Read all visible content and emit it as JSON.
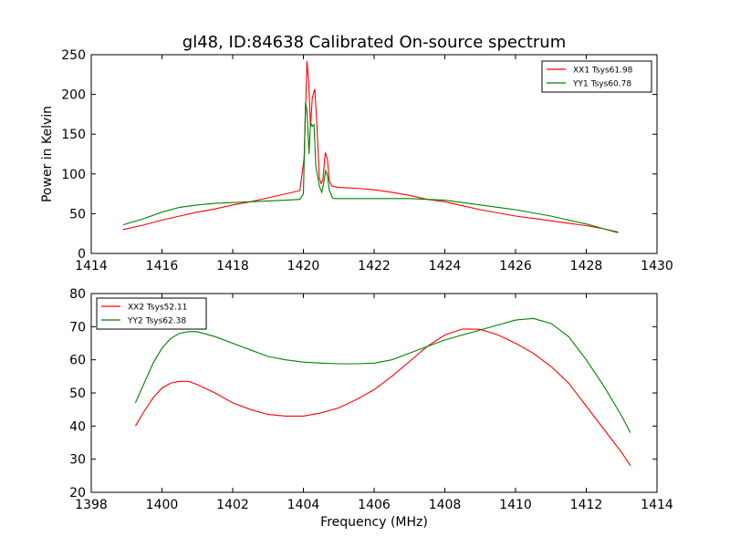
{
  "figure": {
    "title": "gl48, ID:84638 Calibrated On-source spectrum",
    "ylabel": "Power in Kelvin",
    "xlabel": "Frequency (MHz)"
  },
  "chart_data": [
    {
      "type": "line",
      "title": "gl48, ID:84638 Calibrated On-source spectrum",
      "ylabel": "Power in Kelvin",
      "xlabel": "",
      "xlim": [
        1414,
        1430
      ],
      "ylim": [
        0,
        250
      ],
      "xticks": [
        "1414",
        "1416",
        "1418",
        "1420",
        "1422",
        "1424",
        "1426",
        "1428",
        "1430"
      ],
      "yticks": [
        "0",
        "50",
        "100",
        "150",
        "200",
        "250"
      ],
      "grid": false,
      "legend_position": "top-right",
      "series": [
        {
          "name": "XX1 Tsys61.98",
          "color": "#ff0000",
          "x": [
            1414.9,
            1415.5,
            1416.0,
            1416.5,
            1417.0,
            1417.5,
            1418.0,
            1418.5,
            1419.0,
            1419.5,
            1419.9,
            1420.02,
            1420.1,
            1420.15,
            1420.2,
            1420.25,
            1420.32,
            1420.38,
            1420.45,
            1420.5,
            1420.55,
            1420.62,
            1420.68,
            1420.73,
            1420.8,
            1420.9,
            1421.0,
            1421.5,
            1422.0,
            1422.5,
            1423.0,
            1423.5,
            1424.0,
            1424.5,
            1425.0,
            1425.5,
            1426.0,
            1426.5,
            1427.0,
            1427.5,
            1428.0,
            1428.5,
            1428.9
          ],
          "y": [
            30,
            36,
            42,
            47,
            52,
            56,
            61,
            65,
            70,
            75,
            79,
            120,
            242,
            215,
            160,
            195,
            207,
            165,
            95,
            88,
            92,
            127,
            118,
            92,
            85,
            84,
            83,
            82,
            80,
            77,
            73,
            68,
            65,
            60,
            55,
            51,
            47,
            44,
            41,
            38,
            35,
            31,
            27
          ]
        },
        {
          "name": "YY1 Tsys60.78",
          "color": "#008000",
          "x": [
            1414.9,
            1415.5,
            1416.0,
            1416.5,
            1417.0,
            1417.5,
            1418.0,
            1418.5,
            1419.0,
            1419.5,
            1419.9,
            1420.0,
            1420.06,
            1420.1,
            1420.16,
            1420.2,
            1420.25,
            1420.3,
            1420.35,
            1420.45,
            1420.52,
            1420.58,
            1420.63,
            1420.68,
            1420.73,
            1420.82,
            1420.9,
            1421.0,
            1421.5,
            1422.0,
            1422.5,
            1423.0,
            1423.5,
            1424.0,
            1424.5,
            1425.0,
            1425.5,
            1426.0,
            1426.5,
            1427.0,
            1427.5,
            1428.0,
            1428.5,
            1428.9
          ],
          "y": [
            36,
            44,
            52,
            58,
            61,
            63,
            64,
            65,
            66,
            67,
            68,
            75,
            190,
            180,
            125,
            165,
            160,
            162,
            110,
            85,
            77,
            90,
            104,
            98,
            80,
            70,
            69,
            69,
            69,
            69,
            69,
            69,
            68,
            67,
            64,
            61,
            58,
            55,
            51,
            47,
            42,
            37,
            31,
            26
          ]
        }
      ]
    },
    {
      "type": "line",
      "title": "",
      "ylabel": "",
      "xlabel": "Frequency (MHz)",
      "xlim": [
        1398,
        1414
      ],
      "ylim": [
        20,
        80
      ],
      "xticks": [
        "1398",
        "1400",
        "1402",
        "1404",
        "1406",
        "1408",
        "1410",
        "1412",
        "1414"
      ],
      "yticks": [
        "20",
        "30",
        "40",
        "50",
        "60",
        "70",
        "80"
      ],
      "grid": false,
      "legend_position": "top-left",
      "series": [
        {
          "name": "XX2 Tsys52.11",
          "color": "#ff0000",
          "x": [
            1399.25,
            1399.5,
            1399.75,
            1400.0,
            1400.25,
            1400.5,
            1400.75,
            1401.0,
            1401.5,
            1402.0,
            1402.5,
            1403.0,
            1403.5,
            1404.0,
            1404.5,
            1405.0,
            1405.5,
            1406.0,
            1406.5,
            1407.0,
            1407.5,
            1408.0,
            1408.5,
            1409.0,
            1409.5,
            1410.0,
            1410.5,
            1411.0,
            1411.5,
            1412.0,
            1412.5,
            1413.0,
            1413.25
          ],
          "y": [
            40,
            44.5,
            48.5,
            51.5,
            53,
            53.5,
            53.5,
            52.5,
            50,
            47,
            45,
            43.5,
            43,
            43,
            44,
            45.5,
            48,
            51,
            55,
            59.5,
            64,
            67.5,
            69.3,
            69.2,
            67.5,
            65,
            62,
            58,
            53,
            46,
            39,
            32,
            28
          ]
        },
        {
          "name": "YY2 Tsys62.38",
          "color": "#008000",
          "x": [
            1399.25,
            1399.5,
            1399.75,
            1400.0,
            1400.25,
            1400.5,
            1400.75,
            1401.0,
            1401.5,
            1402.0,
            1402.5,
            1403.0,
            1403.5,
            1404.0,
            1404.5,
            1405.0,
            1405.5,
            1406.0,
            1406.5,
            1407.0,
            1407.5,
            1408.0,
            1408.5,
            1409.0,
            1409.5,
            1410.0,
            1410.5,
            1411.0,
            1411.5,
            1412.0,
            1412.5,
            1413.0,
            1413.25
          ],
          "y": [
            47,
            53,
            59,
            63.5,
            66.5,
            68,
            68.5,
            68.5,
            67,
            65,
            63,
            61,
            60,
            59.3,
            59,
            58.8,
            58.8,
            59,
            60,
            62,
            64,
            66,
            67.5,
            69,
            70.5,
            72,
            72.5,
            71,
            67,
            60,
            52,
            43,
            38
          ]
        }
      ]
    }
  ]
}
